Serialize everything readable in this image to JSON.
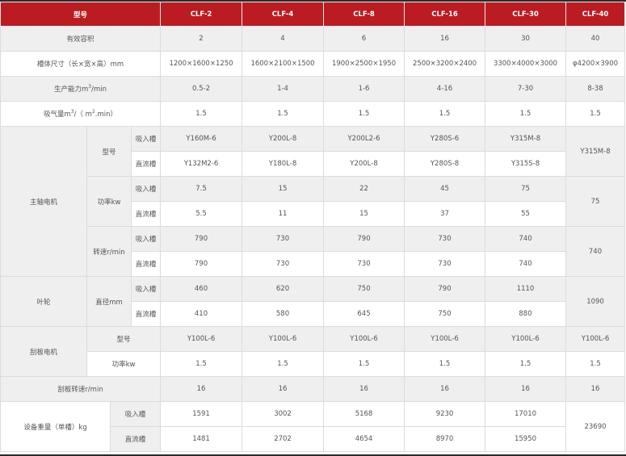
{
  "header": {
    "label": "型号",
    "models": [
      "CLF-2",
      "CLF-4",
      "CLF-8",
      "CLF-16",
      "CLF-30",
      "CLF-40"
    ]
  },
  "volume": {
    "label": "有效容积",
    "values": [
      "2",
      "4",
      "6",
      "16",
      "30",
      "40"
    ]
  },
  "size": {
    "label": "槽体尺寸（长×宽×高）mm",
    "values": [
      "1200×1600×1250",
      "1600×2100×1500",
      "1900×2500×1950",
      "2500×3200×2400",
      "3300×4000×3000",
      "φ4200×3900"
    ]
  },
  "capacity": {
    "label_a": "生产能力m",
    "sup": "3",
    "label_b": "/min",
    "values": [
      "0.5-2",
      "1-4",
      "1-6",
      "4-16",
      "7-30",
      "8-38"
    ]
  },
  "airflow": {
    "label_a": "吸气量m",
    "sup1": "3",
    "label_b": "/（ m",
    "sup2": "2",
    "label_c": ".min）",
    "values": [
      "1.5",
      "1.5",
      "1.5",
      "1.5",
      "1.5",
      "1.5"
    ]
  },
  "main_motor": {
    "label": "主轴电机",
    "model": {
      "label": "型号",
      "suction": {
        "label": "吸入槽",
        "values": [
          "Y160M-6",
          "Y200L-8",
          "Y200L2-6",
          "Y280S-6",
          "Y315M-8"
        ]
      },
      "direct": {
        "label": "直流槽",
        "values": [
          "Y132M2-6",
          "Y180L-8",
          "Y200L-8",
          "Y280S-8",
          "Y315S-8"
        ]
      },
      "combined": "Y315M-8"
    },
    "power": {
      "label": "功率kw",
      "suction": {
        "label": "吸入槽",
        "values": [
          "7.5",
          "15",
          "22",
          "45",
          "75"
        ]
      },
      "direct": {
        "label": "直流槽",
        "values": [
          "5.5",
          "11",
          "15",
          "37",
          "55"
        ]
      },
      "combined": "75"
    },
    "speed": {
      "label": "转速r/min",
      "suction": {
        "label": "吸入槽",
        "values": [
          "790",
          "730",
          "790",
          "730",
          "740"
        ]
      },
      "direct": {
        "label": "直流槽",
        "values": [
          "790",
          "730",
          "730",
          "730",
          "740"
        ]
      },
      "combined": "740"
    }
  },
  "impeller": {
    "label": "叶轮",
    "diameter": {
      "label": "直径mm",
      "suction": {
        "label": "吸入槽",
        "values": [
          "460",
          "620",
          "750",
          "790",
          "1110"
        ]
      },
      "direct": {
        "label": "直流槽",
        "values": [
          "410",
          "580",
          "645",
          "750",
          "880"
        ]
      },
      "combined": "1090"
    }
  },
  "scraper_motor": {
    "label": "刮板电机",
    "model": {
      "label": "型号",
      "values": [
        "Y100L-6",
        "Y100L-6",
        "Y100L-6",
        "Y100L-6",
        "Y100L-6",
        "Y100L-6"
      ]
    },
    "power": {
      "label": "功率kw",
      "values": [
        "1.5",
        "1.5",
        "1.5",
        "1.5",
        "1.5",
        "1.5"
      ]
    }
  },
  "scraper_speed": {
    "label": "刮板转速r/min",
    "values": [
      "16",
      "16",
      "16",
      "16",
      "16",
      "16"
    ]
  },
  "weight": {
    "label": "设备重量（单槽）kg",
    "suction": {
      "label": "吸入槽",
      "values": [
        "1591",
        "3002",
        "5168",
        "9230",
        "17010"
      ]
    },
    "direct": {
      "label": "直流槽",
      "values": [
        "1481",
        "2702",
        "4654",
        "8970",
        "15950"
      ]
    },
    "combined": "23690"
  }
}
